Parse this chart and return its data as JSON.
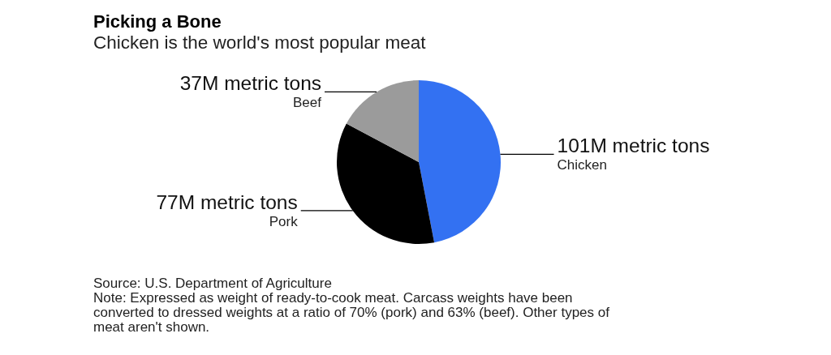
{
  "chart_data": {
    "type": "pie",
    "title": "Picking a Bone",
    "subtitle": "Chicken is the world's most popular meat",
    "categories": [
      "Chicken",
      "Pork",
      "Beef"
    ],
    "values": [
      101,
      77,
      37
    ],
    "value_labels": [
      "101M metric tons",
      "77M metric tons",
      "37M metric tons"
    ],
    "colors": [
      "#3371f2",
      "#000000",
      "#9b9b9b"
    ],
    "legend": false,
    "annotations": [
      "Source: U.S. Department of Agriculture",
      "Note: Expressed as weight of ready-to-cook meat. Carcass weights have been converted to dressed weights at a ratio of 70% (pork) and 63% (beef). Other types of meat aren't shown."
    ]
  }
}
